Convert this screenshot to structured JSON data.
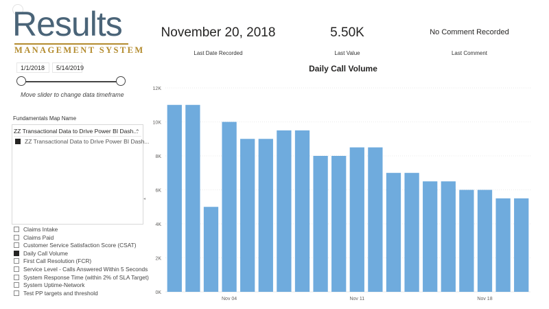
{
  "logo": {
    "main": "Results",
    "sub": "MANAGEMENT SYSTEM"
  },
  "filters": {
    "start_date": "1/1/2018",
    "end_date": "5/14/2019",
    "slider_hint": "Move slider to change data timeframe"
  },
  "slicer": {
    "title": "Fundamentals Map Name",
    "selected": "ZZ Transactional Data to Drive Power BI Dash...",
    "option": "ZZ Transactional Data to Drive Power BI Dash..."
  },
  "kpis": [
    {
      "label": "Claims Intake",
      "checked": false
    },
    {
      "label": "Claims Paid",
      "checked": false
    },
    {
      "label": "Customer Service Satisfaction Score (CSAT)",
      "checked": false
    },
    {
      "label": "Daily Call Volume",
      "checked": true
    },
    {
      "label": "First Call Resolution (FCR)",
      "checked": false
    },
    {
      "label": "Service Level - Calls Answered Within 5 Seconds",
      "checked": false
    },
    {
      "label": "System Response Time (within 2% of SLA Target)",
      "checked": false
    },
    {
      "label": "System Uptime-Network",
      "checked": false
    },
    {
      "label": "Test PP targets and threshold",
      "checked": false
    }
  ],
  "cards": {
    "last_date": {
      "value": "November 20, 2018",
      "label": "Last Date Recorded"
    },
    "last_value": {
      "value": "5.50K",
      "label": "Last Value"
    },
    "last_comment": {
      "value": "No Comment Recorded",
      "label": "Last Comment"
    }
  },
  "colors": {
    "bar": "#6fabdd",
    "grid": "#eaeaea",
    "axis_text": "#605e5c"
  },
  "chart_data": {
    "type": "bar",
    "title": "Daily Call Volume",
    "categories": [
      "Nov 01",
      "Nov 02",
      "Nov 03",
      "Nov 04",
      "Nov 05",
      "Nov 06",
      "Nov 07",
      "Nov 08",
      "Nov 09",
      "Nov 10",
      "Nov 11",
      "Nov 12",
      "Nov 13",
      "Nov 14",
      "Nov 15",
      "Nov 16",
      "Nov 17",
      "Nov 18",
      "Nov 19",
      "Nov 20"
    ],
    "values": [
      11000,
      11000,
      5000,
      10000,
      9000,
      9000,
      9500,
      9500,
      8000,
      8000,
      8500,
      8500,
      7000,
      7000,
      6500,
      6500,
      6000,
      6000,
      5500,
      5500
    ],
    "x_tick_labels": [
      "Nov 04",
      "Nov 11",
      "Nov 18"
    ],
    "y_ticks": [
      0,
      2000,
      4000,
      6000,
      8000,
      10000,
      12000
    ],
    "y_tick_labels": [
      "0K",
      "2K",
      "4K",
      "6K",
      "8K",
      "10K",
      "12K"
    ],
    "ylim": [
      0,
      12000
    ],
    "grid": true
  }
}
